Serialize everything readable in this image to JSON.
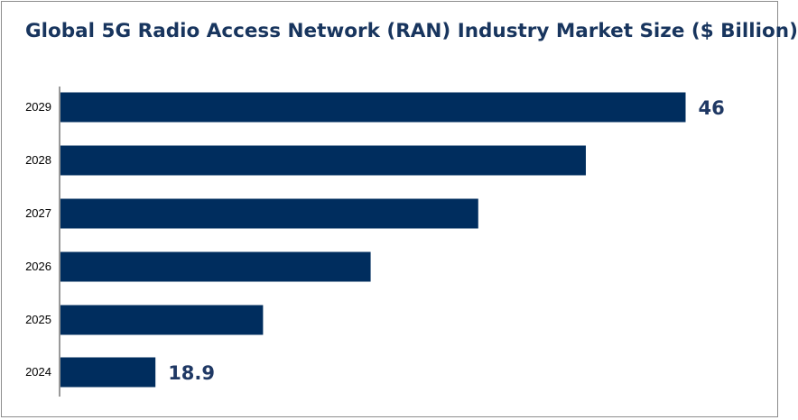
{
  "chart_data": {
    "type": "bar",
    "orientation": "horizontal",
    "title": "Global 5G Radio Access Network (RAN) Industry Market Size ($ Billion)",
    "categories": [
      "2024",
      "2025",
      "2026",
      "2027",
      "2028",
      "2029"
    ],
    "values": [
      18.9,
      24.4,
      29.9,
      35.4,
      40.9,
      46
    ],
    "data_labels": [
      {
        "category": "2024",
        "text": "18.9"
      },
      {
        "category": "2029",
        "text": "46"
      }
    ],
    "bar_color": "#002d5e",
    "label_color": "#1f3864",
    "title_color": "#18355e",
    "xlim": [
      14,
      47.5
    ],
    "grid": false,
    "legend": "none"
  }
}
